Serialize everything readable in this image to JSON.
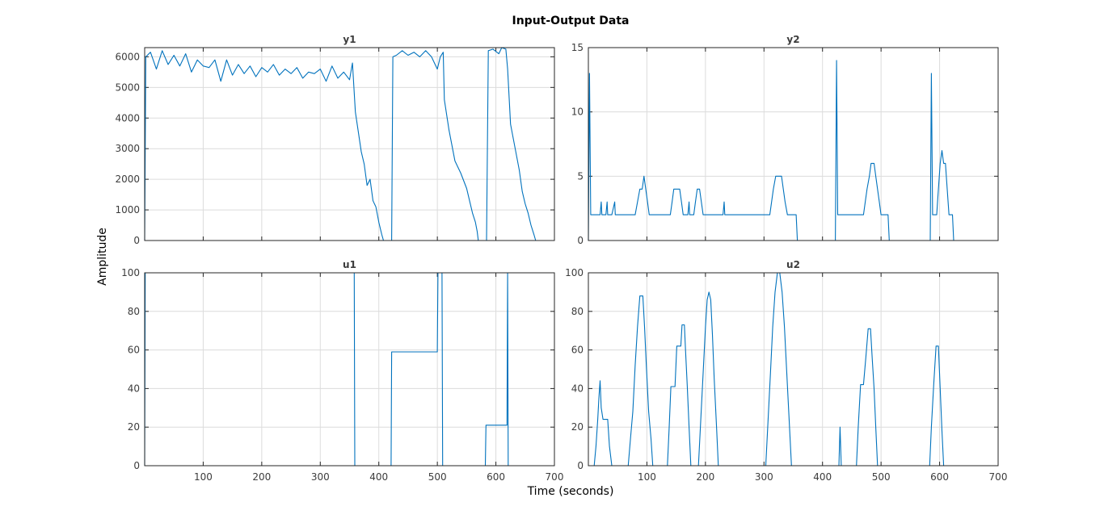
{
  "figure": {
    "title": "Input-Output Data",
    "xlabel": "Time (seconds)",
    "ylabel": "Amplitude"
  },
  "colors": {
    "series": "#0072bd",
    "grid": "#dcdcdc",
    "axes": "#262626"
  },
  "chart_data": [
    {
      "type": "line",
      "title": "y1",
      "xlim": [
        0,
        700
      ],
      "ylim": [
        0,
        6300
      ],
      "yticks": [
        0,
        1000,
        2000,
        3000,
        4000,
        5000,
        6000
      ],
      "xticks": [
        100,
        200,
        300,
        400,
        500,
        600,
        700
      ],
      "show_xtick_labels": false,
      "grid": true,
      "series": [
        {
          "points": [
            [
              0,
              0
            ],
            [
              2,
              6000
            ],
            [
              10,
              6150
            ],
            [
              20,
              5600
            ],
            [
              30,
              6200
            ],
            [
              40,
              5750
            ],
            [
              50,
              6050
            ],
            [
              60,
              5700
            ],
            [
              70,
              6100
            ],
            [
              80,
              5500
            ],
            [
              90,
              5900
            ],
            [
              100,
              5700
            ],
            [
              110,
              5650
            ],
            [
              120,
              5900
            ],
            [
              130,
              5200
            ],
            [
              140,
              5900
            ],
            [
              150,
              5400
            ],
            [
              160,
              5750
            ],
            [
              170,
              5450
            ],
            [
              180,
              5700
            ],
            [
              190,
              5350
            ],
            [
              200,
              5650
            ],
            [
              210,
              5500
            ],
            [
              220,
              5750
            ],
            [
              230,
              5400
            ],
            [
              240,
              5600
            ],
            [
              250,
              5450
            ],
            [
              260,
              5650
            ],
            [
              270,
              5300
            ],
            [
              280,
              5500
            ],
            [
              290,
              5450
            ],
            [
              300,
              5600
            ],
            [
              310,
              5200
            ],
            [
              320,
              5700
            ],
            [
              330,
              5300
            ],
            [
              340,
              5500
            ],
            [
              350,
              5250
            ],
            [
              355,
              5800
            ],
            [
              360,
              4200
            ],
            [
              370,
              2900
            ],
            [
              375,
              2500
            ],
            [
              380,
              1800
            ],
            [
              385,
              2000
            ],
            [
              390,
              1300
            ],
            [
              395,
              1100
            ],
            [
              400,
              600
            ],
            [
              405,
              200
            ],
            [
              408,
              0
            ],
            [
              422,
              0
            ],
            [
              424,
              6000
            ],
            [
              430,
              6050
            ],
            [
              440,
              6200
            ],
            [
              450,
              6050
            ],
            [
              460,
              6150
            ],
            [
              470,
              6000
            ],
            [
              480,
              6200
            ],
            [
              490,
              6000
            ],
            [
              500,
              5600
            ],
            [
              505,
              6000
            ],
            [
              510,
              6150
            ],
            [
              512,
              4600
            ],
            [
              520,
              3600
            ],
            [
              530,
              2600
            ],
            [
              540,
              2200
            ],
            [
              550,
              1700
            ],
            [
              555,
              1300
            ],
            [
              560,
              900
            ],
            [
              565,
              600
            ],
            [
              568,
              300
            ],
            [
              570,
              0
            ],
            [
              584,
              0
            ],
            [
              587,
              6200
            ],
            [
              595,
              6250
            ],
            [
              605,
              6100
            ],
            [
              610,
              6300
            ],
            [
              617,
              6250
            ],
            [
              620,
              5600
            ],
            [
              625,
              3800
            ],
            [
              630,
              3300
            ],
            [
              640,
              2300
            ],
            [
              645,
              1600
            ],
            [
              650,
              1200
            ],
            [
              655,
              900
            ],
            [
              660,
              500
            ],
            [
              665,
              200
            ],
            [
              668,
              0
            ],
            [
              680,
              0
            ]
          ]
        }
      ]
    },
    {
      "type": "line",
      "title": "y2",
      "xlim": [
        0,
        700
      ],
      "ylim": [
        0,
        15
      ],
      "yticks": [
        0,
        5,
        10,
        15
      ],
      "xticks": [
        100,
        200,
        300,
        400,
        500,
        600,
        700
      ],
      "show_xtick_labels": false,
      "grid": true,
      "series": [
        {
          "points": [
            [
              0,
              0
            ],
            [
              2,
              13
            ],
            [
              4,
              2
            ],
            [
              20,
              2
            ],
            [
              22,
              3
            ],
            [
              23,
              2
            ],
            [
              30,
              2
            ],
            [
              32,
              3
            ],
            [
              33,
              2
            ],
            [
              40,
              2
            ],
            [
              45,
              3
            ],
            [
              46,
              2
            ],
            [
              80,
              2
            ],
            [
              84,
              3
            ],
            [
              88,
              4
            ],
            [
              92,
              4
            ],
            [
              95,
              5
            ],
            [
              98,
              4
            ],
            [
              101,
              3
            ],
            [
              104,
              2
            ],
            [
              140,
              2
            ],
            [
              143,
              3
            ],
            [
              146,
              4
            ],
            [
              156,
              4
            ],
            [
              159,
              3
            ],
            [
              162,
              2
            ],
            [
              170,
              2
            ],
            [
              172,
              3
            ],
            [
              173,
              2
            ],
            [
              180,
              2
            ],
            [
              183,
              3
            ],
            [
              186,
              4
            ],
            [
              190,
              4
            ],
            [
              193,
              3
            ],
            [
              196,
              2
            ],
            [
              230,
              2
            ],
            [
              232,
              3
            ],
            [
              233,
              2
            ],
            [
              310,
              2
            ],
            [
              313,
              3
            ],
            [
              316,
              4
            ],
            [
              320,
              5
            ],
            [
              330,
              5
            ],
            [
              333,
              4
            ],
            [
              336,
              3
            ],
            [
              340,
              2
            ],
            [
              355,
              2
            ],
            [
              357,
              0
            ],
            [
              422,
              0
            ],
            [
              424,
              14
            ],
            [
              426,
              2
            ],
            [
              470,
              2
            ],
            [
              473,
              3
            ],
            [
              476,
              4
            ],
            [
              480,
              5
            ],
            [
              483,
              6
            ],
            [
              488,
              6
            ],
            [
              491,
              5
            ],
            [
              494,
              4
            ],
            [
              497,
              3
            ],
            [
              500,
              2
            ],
            [
              512,
              2
            ],
            [
              514,
              0
            ],
            [
              584,
              0
            ],
            [
              586,
              13
            ],
            [
              588,
              2
            ],
            [
              595,
              2
            ],
            [
              598,
              4
            ],
            [
              601,
              6
            ],
            [
              604,
              7
            ],
            [
              607,
              6
            ],
            [
              610,
              6
            ],
            [
              613,
              4
            ],
            [
              616,
              2
            ],
            [
              622,
              2
            ],
            [
              624,
              0
            ],
            [
              680,
              0
            ]
          ]
        }
      ]
    },
    {
      "type": "line",
      "title": "u1",
      "xlim": [
        0,
        700
      ],
      "ylim": [
        0,
        100
      ],
      "yticks": [
        0,
        20,
        40,
        60,
        80,
        100
      ],
      "xticks": [
        100,
        200,
        300,
        400,
        500,
        600,
        700
      ],
      "show_xtick_labels": true,
      "grid": true,
      "series": [
        {
          "points": [
            [
              0,
              0
            ],
            [
              1,
              100
            ],
            [
              358,
              100
            ],
            [
              359,
              0
            ],
            [
              421,
              0
            ],
            [
              422,
              59
            ],
            [
              500,
              59
            ],
            [
              501,
              100
            ],
            [
              508,
              100
            ],
            [
              509,
              0
            ],
            [
              582,
              0
            ],
            [
              583,
              21
            ],
            [
              619,
              21
            ],
            [
              620,
              100
            ],
            [
              621,
              0
            ],
            [
              680,
              0
            ]
          ]
        }
      ]
    },
    {
      "type": "line",
      "title": "u2",
      "xlim": [
        0,
        700
      ],
      "ylim": [
        0,
        100
      ],
      "yticks": [
        0,
        20,
        40,
        60,
        80,
        100
      ],
      "xticks": [
        100,
        200,
        300,
        400,
        500,
        600,
        700
      ],
      "show_xtick_labels": true,
      "grid": true,
      "series": [
        {
          "points": [
            [
              0,
              0
            ],
            [
              10,
              0
            ],
            [
              13,
              10
            ],
            [
              16,
              24
            ],
            [
              18,
              35
            ],
            [
              20,
              44
            ],
            [
              22,
              30
            ],
            [
              25,
              24
            ],
            [
              33,
              24
            ],
            [
              36,
              10
            ],
            [
              40,
              0
            ],
            [
              68,
              0
            ],
            [
              72,
              14
            ],
            [
              76,
              28
            ],
            [
              80,
              52
            ],
            [
              84,
              72
            ],
            [
              88,
              88
            ],
            [
              93,
              88
            ],
            [
              96,
              72
            ],
            [
              99,
              52
            ],
            [
              103,
              28
            ],
            [
              107,
              14
            ],
            [
              110,
              0
            ],
            [
              135,
              0
            ],
            [
              138,
              20
            ],
            [
              141,
              41
            ],
            [
              148,
              41
            ],
            [
              151,
              62
            ],
            [
              158,
              62
            ],
            [
              160,
              73
            ],
            [
              164,
              73
            ],
            [
              166,
              60
            ],
            [
              169,
              41
            ],
            [
              172,
              20
            ],
            [
              175,
              0
            ],
            [
              188,
              0
            ],
            [
              192,
              24
            ],
            [
              196,
              48
            ],
            [
              200,
              72
            ],
            [
              203,
              86
            ],
            [
              206,
              90
            ],
            [
              209,
              86
            ],
            [
              212,
              68
            ],
            [
              215,
              45
            ],
            [
              219,
              20
            ],
            [
              222,
              0
            ],
            [
              303,
              0
            ],
            [
              307,
              24
            ],
            [
              311,
              48
            ],
            [
              315,
              72
            ],
            [
              319,
              90
            ],
            [
              323,
              100
            ],
            [
              327,
              100
            ],
            [
              331,
              90
            ],
            [
              335,
              72
            ],
            [
              339,
              48
            ],
            [
              343,
              24
            ],
            [
              347,
              0
            ],
            [
              428,
              0
            ],
            [
              430,
              20
            ],
            [
              432,
              0
            ],
            [
              458,
              0
            ],
            [
              461,
              20
            ],
            [
              465,
              42
            ],
            [
              470,
              42
            ],
            [
              474,
              56
            ],
            [
              478,
              71
            ],
            [
              482,
              71
            ],
            [
              485,
              55
            ],
            [
              488,
              40
            ],
            [
              491,
              20
            ],
            [
              494,
              0
            ],
            [
              583,
              0
            ],
            [
              586,
              20
            ],
            [
              590,
              42
            ],
            [
              594,
              62
            ],
            [
              598,
              62
            ],
            [
              601,
              40
            ],
            [
              604,
              18
            ],
            [
              607,
              0
            ],
            [
              680,
              0
            ]
          ]
        }
      ]
    }
  ]
}
